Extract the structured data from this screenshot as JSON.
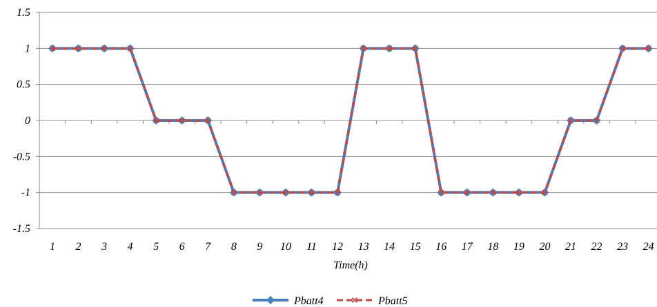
{
  "chart_data": {
    "type": "line",
    "title": "",
    "xlabel": "Time(h)",
    "ylabel": "",
    "categories": [
      "1",
      "2",
      "3",
      "4",
      "5",
      "6",
      "7",
      "8",
      "9",
      "10",
      "11",
      "12",
      "13",
      "14",
      "15",
      "16",
      "17",
      "18",
      "19",
      "20",
      "21",
      "22",
      "23",
      "24"
    ],
    "ylim": [
      -1.5,
      1.5
    ],
    "yticks": [
      1.5,
      1,
      0.5,
      0,
      -0.5,
      -1,
      -1.5
    ],
    "ytick_labels": [
      "1.5",
      "1",
      "0.5",
      "0",
      "-0.5",
      "-1",
      "-1.5"
    ],
    "grid": true,
    "legend_position": "bottom",
    "series": [
      {
        "name": "Pbatt4",
        "color": "#4a7ebb",
        "marker": "diamond",
        "values": [
          1,
          1,
          1,
          1,
          0,
          0,
          0,
          -1,
          -1,
          -1,
          -1,
          -1,
          1,
          1,
          1,
          -1,
          -1,
          -1,
          -1,
          -1,
          0,
          0,
          1,
          1
        ]
      },
      {
        "name": "Pbatt5",
        "color": "#be4b48",
        "marker": "x",
        "dashed": true,
        "values": [
          1,
          1,
          1,
          1,
          0,
          0,
          0,
          -1,
          -1,
          -1,
          -1,
          -1,
          1,
          1,
          1,
          -1,
          -1,
          -1,
          -1,
          -1,
          0,
          0,
          1,
          1
        ]
      }
    ]
  }
}
